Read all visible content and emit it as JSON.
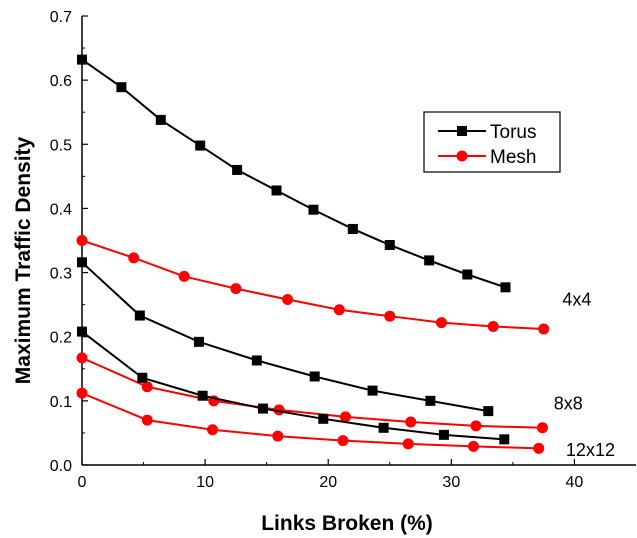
{
  "chart_data": {
    "type": "line",
    "title": "",
    "xlabel": "Links Broken (%)",
    "ylabel": "Maximum Traffic Density",
    "xlim": [
      0,
      45
    ],
    "ylim": [
      0,
      0.7
    ],
    "xticks": [
      "0",
      "10",
      "20",
      "30",
      "40"
    ],
    "yticks": [
      "0.0",
      "0.1",
      "0.2",
      "0.3",
      "0.4",
      "0.5",
      "0.6",
      "0.7"
    ],
    "grid": false,
    "legend": {
      "placement": "top-right",
      "entries": [
        {
          "label": "Torus",
          "color": "#000000",
          "marker": "square"
        },
        {
          "label": "Mesh",
          "color": "#ff0000",
          "marker": "circle"
        }
      ]
    },
    "annotations": [
      {
        "text": "4x4",
        "x": 40.2,
        "y": 0.258
      },
      {
        "text": "8x8",
        "x": 39.5,
        "y": 0.096
      },
      {
        "text": "12x12",
        "x": 41.3,
        "y": 0.023
      }
    ],
    "series": [
      {
        "group": "Torus",
        "size": "4x4",
        "color": "#000000",
        "marker": "square",
        "points": [
          [
            0,
            0.632
          ],
          [
            3.2,
            0.589
          ],
          [
            6.4,
            0.538
          ],
          [
            9.6,
            0.498
          ],
          [
            12.6,
            0.46
          ],
          [
            15.8,
            0.428
          ],
          [
            18.8,
            0.398
          ],
          [
            22.0,
            0.368
          ],
          [
            25.0,
            0.343
          ],
          [
            28.2,
            0.319
          ],
          [
            31.3,
            0.297
          ],
          [
            34.4,
            0.277
          ]
        ]
      },
      {
        "group": "Mesh",
        "size": "4x4",
        "color": "#ff0000",
        "marker": "circle",
        "points": [
          [
            0,
            0.35
          ],
          [
            4.2,
            0.323
          ],
          [
            8.3,
            0.294
          ],
          [
            12.5,
            0.275
          ],
          [
            16.7,
            0.258
          ],
          [
            20.9,
            0.242
          ],
          [
            25.0,
            0.232
          ],
          [
            29.2,
            0.222
          ],
          [
            33.4,
            0.216
          ],
          [
            37.5,
            0.212
          ]
        ]
      },
      {
        "group": "Torus",
        "size": "8x8",
        "color": "#000000",
        "marker": "square",
        "points": [
          [
            0,
            0.316
          ],
          [
            4.7,
            0.233
          ],
          [
            9.5,
            0.192
          ],
          [
            14.2,
            0.163
          ],
          [
            18.9,
            0.138
          ],
          [
            23.6,
            0.116
          ],
          [
            28.3,
            0.1
          ],
          [
            33.0,
            0.084
          ]
        ]
      },
      {
        "group": "Mesh",
        "size": "8x8",
        "color": "#ff0000",
        "marker": "circle",
        "points": [
          [
            0,
            0.167
          ],
          [
            5.3,
            0.122
          ],
          [
            10.7,
            0.1
          ],
          [
            16.0,
            0.086
          ],
          [
            21.4,
            0.075
          ],
          [
            26.7,
            0.067
          ],
          [
            32.0,
            0.061
          ],
          [
            37.4,
            0.058
          ]
        ]
      },
      {
        "group": "Torus",
        "size": "12x12",
        "color": "#000000",
        "marker": "square",
        "points": [
          [
            0,
            0.208
          ],
          [
            4.9,
            0.136
          ],
          [
            9.8,
            0.108
          ],
          [
            14.7,
            0.088
          ],
          [
            19.6,
            0.072
          ],
          [
            24.5,
            0.058
          ],
          [
            29.4,
            0.047
          ],
          [
            34.3,
            0.04
          ]
        ]
      },
      {
        "group": "Mesh",
        "size": "12x12",
        "color": "#ff0000",
        "marker": "circle",
        "points": [
          [
            0,
            0.112
          ],
          [
            5.3,
            0.07
          ],
          [
            10.6,
            0.055
          ],
          [
            15.9,
            0.045
          ],
          [
            21.2,
            0.038
          ],
          [
            26.5,
            0.033
          ],
          [
            31.8,
            0.029
          ],
          [
            37.1,
            0.026
          ]
        ]
      }
    ]
  }
}
